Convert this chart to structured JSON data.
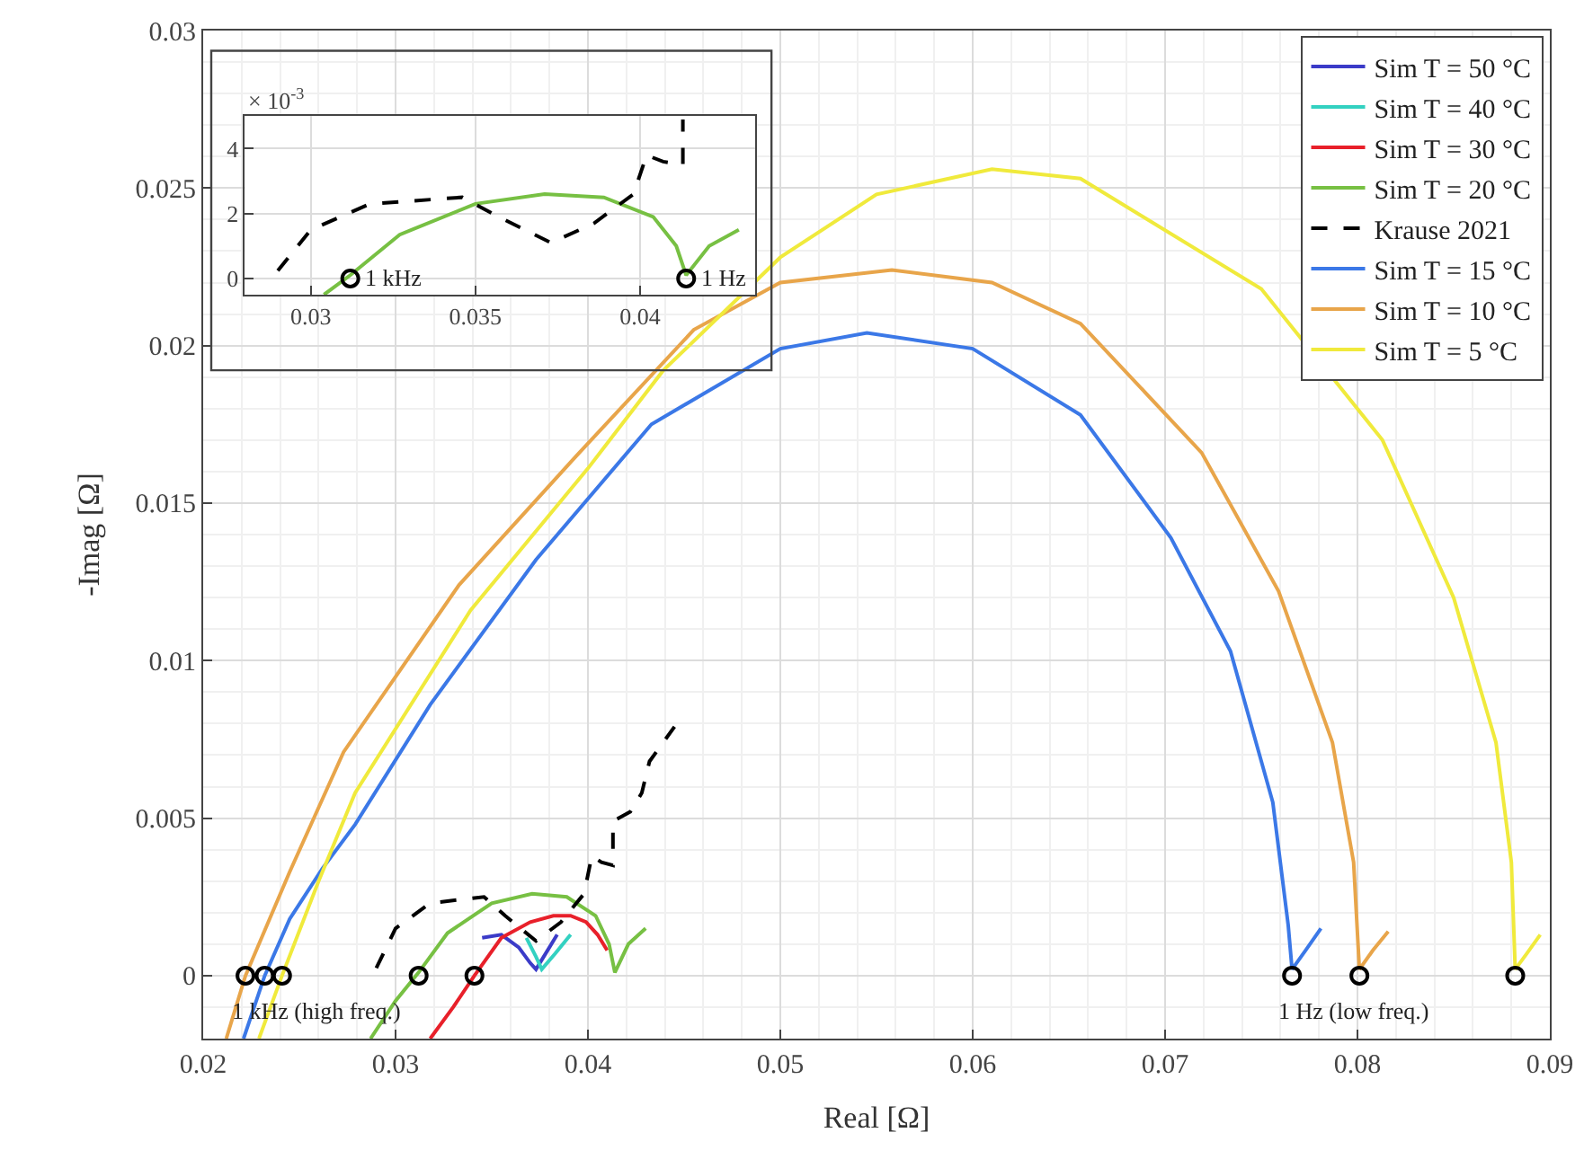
{
  "chart_data": [
    {
      "type": "line",
      "xlabel": "Real [Ω]",
      "ylabel": "-Imag [Ω]",
      "xlim": [
        0.02,
        0.09
      ],
      "ylim": [
        -0.002,
        0.03
      ],
      "xticks": [
        0.02,
        0.03,
        0.04,
        0.05,
        0.06,
        0.07,
        0.08,
        0.09
      ],
      "yticks": [
        0,
        0.005,
        0.01,
        0.015,
        0.02,
        0.025,
        0.03
      ],
      "grid": true,
      "legend": "top right",
      "series": [
        {
          "name": "Sim T = 50 °C",
          "color": "#3b3bc8",
          "x": [
            0.0345,
            0.0355,
            0.0364,
            0.037,
            0.0373,
            0.0378,
            0.0384
          ],
          "values": [
            0.0012,
            0.0013,
            0.0009,
            0.0004,
            0.0002,
            0.0007,
            0.0013
          ]
        },
        {
          "name": "Sim T = 40 °C",
          "color": "#33d1c1",
          "x": [
            0.0368,
            0.0373,
            0.0376,
            0.0383,
            0.0391
          ],
          "values": [
            0.0012,
            0.0006,
            0.0002,
            0.0007,
            0.0013
          ]
        },
        {
          "name": "Sim T = 30 °C",
          "color": "#e8202a",
          "x": [
            0.0318,
            0.033,
            0.0341,
            0.0355,
            0.037,
            0.0382,
            0.0391,
            0.0399,
            0.0405,
            0.041
          ],
          "values": [
            -0.002,
            -0.001,
            0,
            0.0012,
            0.0017,
            0.0019,
            0.0019,
            0.0017,
            0.0013,
            0.0008
          ]
        },
        {
          "name": "Sim T = 20 °C",
          "color": "#77c043",
          "x": [
            0.0287,
            0.03,
            0.0312,
            0.0327,
            0.035,
            0.0371,
            0.0389,
            0.0404,
            0.0411,
            0.0414,
            0.0421,
            0.043
          ],
          "values": [
            -0.002,
            -0.0008,
            0.0001,
            0.00135,
            0.0023,
            0.0026,
            0.0025,
            0.0019,
            0.001,
            0.0001,
            0.001,
            0.0015
          ]
        },
        {
          "name": "Krause 2021",
          "color": "#000000",
          "line_style": "dashed",
          "x": [
            0.029,
            0.03,
            0.0318,
            0.0346,
            0.0357,
            0.0373,
            0.0386,
            0.0398,
            0.0402,
            0.0407,
            0.0413,
            0.0413,
            0.0422,
            0.0428,
            0.0432,
            0.0445
          ],
          "values": [
            0.00024,
            0.0015,
            0.0023,
            0.0025,
            0.0019,
            0.0011,
            0.0017,
            0.0026,
            0.0038,
            0.0036,
            0.0035,
            0.0049,
            0.0052,
            0.0058,
            0.0068,
            0.0079
          ]
        },
        {
          "name": "Sim T = 15 °C",
          "color": "#3b78e7",
          "x": [
            0.0221,
            0.0232,
            0.0245,
            0.0262,
            0.0279,
            0.0318,
            0.0373,
            0.0433,
            0.05,
            0.0545,
            0.06,
            0.0656,
            0.0703,
            0.0734,
            0.0756,
            0.0764,
            0.0766,
            0.0773,
            0.0781
          ],
          "values": [
            -0.002,
            0,
            0.0018,
            0.0034,
            0.0048,
            0.0086,
            0.0132,
            0.0175,
            0.0199,
            0.0204,
            0.0199,
            0.0178,
            0.0139,
            0.0103,
            0.0055,
            0.0016,
            0.0002,
            0.0008,
            0.0015
          ]
        },
        {
          "name": "Sim T = 10 °C",
          "color": "#e8a54a",
          "x": [
            0.0212,
            0.0222,
            0.0245,
            0.0273,
            0.0333,
            0.0394,
            0.0455,
            0.05,
            0.0558,
            0.061,
            0.0656,
            0.0719,
            0.0759,
            0.0787,
            0.0798,
            0.0801,
            0.0808,
            0.0816
          ],
          "values": [
            -0.002,
            0,
            0.0033,
            0.0071,
            0.0124,
            0.0165,
            0.0205,
            0.022,
            0.0224,
            0.022,
            0.0207,
            0.0166,
            0.0122,
            0.0074,
            0.0036,
            0.0002,
            0.0008,
            0.0014
          ]
        },
        {
          "name": "Sim T = 5 °C",
          "color": "#f0ea3c",
          "x": [
            0.0229,
            0.0241,
            0.026,
            0.0279,
            0.0339,
            0.04,
            0.0439,
            0.05,
            0.055,
            0.061,
            0.0656,
            0.075,
            0.0813,
            0.085,
            0.0872,
            0.088,
            0.0882,
            0.0888,
            0.0895
          ],
          "values": [
            -0.002,
            0,
            0.003,
            0.0058,
            0.0116,
            0.0161,
            0.0192,
            0.0228,
            0.0248,
            0.0256,
            0.0253,
            0.0218,
            0.017,
            0.012,
            0.0074,
            0.0036,
            0.0002,
            0.0007,
            0.0013
          ]
        },
        {
          "type": "scatter",
          "marker": "circle",
          "color": "#000000",
          "x": [
            0.0222,
            0.0232,
            0.0241,
            0.0312,
            0.0341,
            0.0766,
            0.0801,
            0.0882
          ],
          "values": [
            0,
            0,
            0,
            0,
            0,
            0,
            0,
            0
          ]
        }
      ],
      "annotations": [
        {
          "text": "1 kHz (high freq.)",
          "x": 0.0222,
          "y": 0
        },
        {
          "text": "1 Hz (low freq.)",
          "x": 0.0766,
          "y": 0
        }
      ]
    },
    {
      "type": "line",
      "xlim": [
        0.028,
        0.0435
      ],
      "ylim": [
        -0.5,
        5
      ],
      "xticks": [
        0.03,
        0.035,
        0.04
      ],
      "yticks": [
        0,
        2,
        4
      ],
      "grid": true,
      "series": [
        {
          "color": "#77c043",
          "x": [
            0.0304,
            0.0312,
            0.0327,
            0.035,
            0.0371,
            0.0389,
            0.0404,
            0.0411,
            0.0414,
            0.0421,
            0.043
          ],
          "values": [
            -0.5,
            0.1,
            1.35,
            2.3,
            2.6,
            2.5,
            1.9,
            1.0,
            0.1,
            1.0,
            1.5
          ]
        },
        {
          "color": "#000000",
          "line_style": "dashed",
          "x": [
            0.029,
            0.03,
            0.0318,
            0.0346,
            0.0357,
            0.0373,
            0.0386,
            0.0398,
            0.0402,
            0.0407,
            0.0413,
            0.0413
          ],
          "values": [
            0.24,
            1.5,
            2.3,
            2.5,
            1.9,
            1.1,
            1.7,
            2.6,
            3.8,
            3.6,
            3.5,
            4.9
          ]
        },
        {
          "type": "scatter",
          "marker": "circle",
          "color": "#000000",
          "x": [
            0.0312,
            0.0414
          ],
          "values": [
            0,
            0
          ]
        }
      ],
      "annotations": [
        "× 10$^{-3}$",
        {
          "text": "1 kHz",
          "x": 0.0312,
          "y": 0
        },
        {
          "text": "1 Hz",
          "x": 0.0414,
          "y": 0
        }
      ]
    }
  ]
}
